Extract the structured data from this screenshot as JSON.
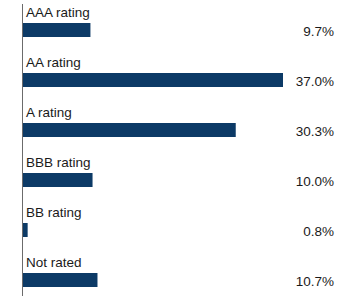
{
  "chart_data": {
    "type": "bar",
    "orientation": "horizontal",
    "categories": [
      "AAA rating",
      "AA rating",
      "A rating",
      "BBB rating",
      "BB rating",
      "Not rated"
    ],
    "values": [
      9.7,
      37.0,
      30.3,
      10.0,
      0.8,
      10.7
    ],
    "value_labels": [
      "9.7%",
      "37.0%",
      "30.3%",
      "10.0%",
      "0.8%",
      "10.7%"
    ],
    "color": "#0c3a66",
    "data_labels": true
  }
}
